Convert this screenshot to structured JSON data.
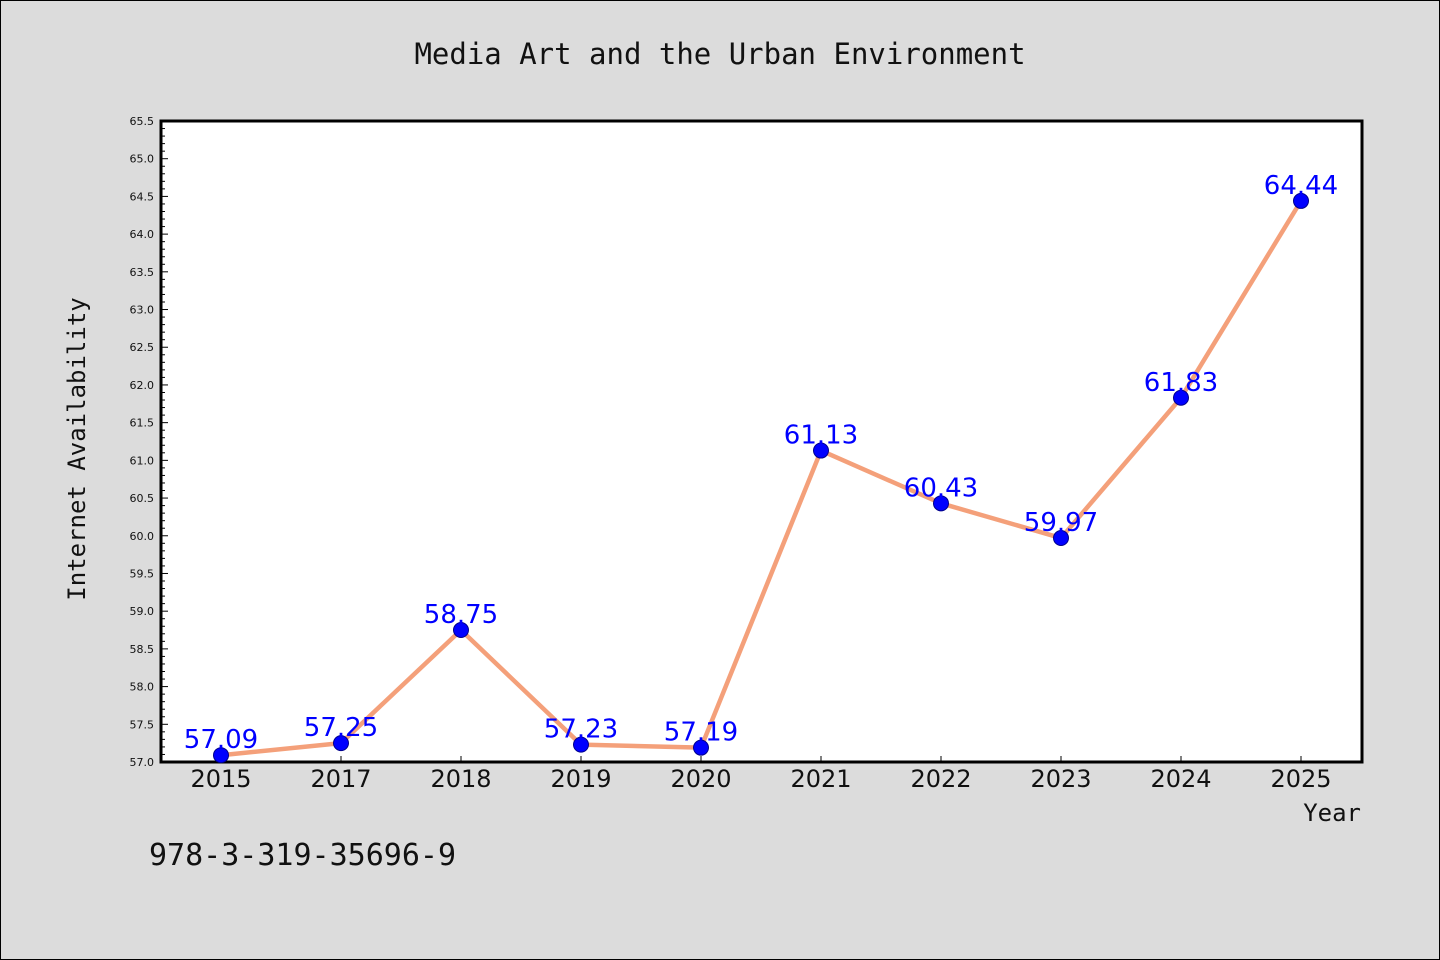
{
  "chart_data": {
    "type": "line",
    "title": "Media Art and the Urban Environment",
    "xlabel": "Year",
    "ylabel": "Internet Availability",
    "categories": [
      "2015",
      "2017",
      "2018",
      "2019",
      "2020",
      "2021",
      "2022",
      "2023",
      "2024",
      "2025"
    ],
    "values": [
      57.09,
      57.25,
      58.75,
      57.23,
      57.19,
      61.13,
      60.43,
      59.97,
      61.83,
      64.44
    ],
    "data_labels": [
      "57.09",
      "57.25",
      "58.75",
      "57.23",
      "57.19",
      "61.13",
      "60.43",
      "59.97",
      "61.83",
      "64.44"
    ],
    "ylim": [
      57.0,
      65.5
    ],
    "yticks": [
      "57.0",
      "57.5",
      "58.0",
      "58.5",
      "59.0",
      "59.5",
      "60.0",
      "60.5",
      "61.0",
      "61.5",
      "62.0",
      "62.5",
      "63.0",
      "63.5",
      "64.0",
      "64.5",
      "65.0",
      "65.5"
    ],
    "grid": false,
    "legend": "none",
    "line_color": "#f4a07a",
    "marker_color": "#0000ff",
    "label_color": "#0000ff"
  },
  "footer": {
    "isbn": "978-3-319-35696-9"
  }
}
